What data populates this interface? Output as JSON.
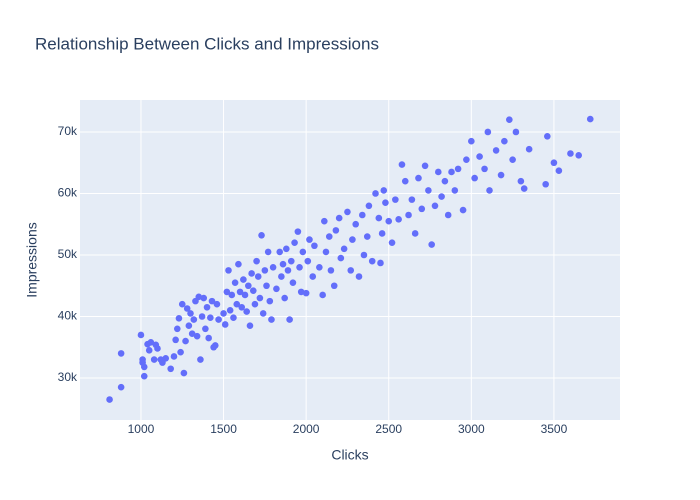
{
  "chart_data": {
    "type": "scatter",
    "title": "Relationship Between Clicks and Impressions",
    "x_label": "Clicks",
    "y_label": "Impressions",
    "color": "#636efa",
    "grid": true,
    "xlim": [
      631,
      3900
    ],
    "ylim": [
      23170,
      75200
    ],
    "xticks": [
      1000,
      1500,
      2000,
      2500,
      3000,
      3500
    ],
    "yticks": [
      {
        "value": 30000,
        "label": "30k"
      },
      {
        "value": 40000,
        "label": "40k"
      },
      {
        "value": 50000,
        "label": "50k"
      },
      {
        "value": 60000,
        "label": "60k"
      },
      {
        "value": 70000,
        "label": "70k"
      }
    ],
    "x": [
      810,
      880,
      880,
      1000,
      1010,
      1010,
      1020,
      1020,
      1040,
      1050,
      1060,
      1080,
      1090,
      1100,
      1120,
      1130,
      1150,
      1180,
      1200,
      1210,
      1220,
      1230,
      1240,
      1250,
      1260,
      1270,
      1280,
      1290,
      1300,
      1310,
      1320,
      1330,
      1340,
      1350,
      1360,
      1370,
      1380,
      1390,
      1400,
      1410,
      1420,
      1430,
      1440,
      1450,
      1460,
      1470,
      1500,
      1510,
      1520,
      1530,
      1540,
      1550,
      1560,
      1570,
      1580,
      1590,
      1600,
      1610,
      1620,
      1630,
      1640,
      1650,
      1660,
      1670,
      1680,
      1690,
      1700,
      1710,
      1720,
      1730,
      1740,
      1750,
      1760,
      1770,
      1780,
      1790,
      1800,
      1820,
      1840,
      1850,
      1860,
      1870,
      1880,
      1890,
      1900,
      1910,
      1920,
      1930,
      1950,
      1960,
      1970,
      1980,
      2000,
      2010,
      2020,
      2040,
      2050,
      2080,
      2100,
      2110,
      2120,
      2140,
      2150,
      2170,
      2180,
      2200,
      2210,
      2230,
      2250,
      2270,
      2280,
      2300,
      2320,
      2340,
      2350,
      2370,
      2380,
      2400,
      2420,
      2440,
      2450,
      2460,
      2470,
      2480,
      2500,
      2520,
      2540,
      2560,
      2580,
      2600,
      2620,
      2640,
      2660,
      2680,
      2700,
      2720,
      2740,
      2760,
      2780,
      2800,
      2820,
      2840,
      2860,
      2880,
      2900,
      2920,
      2950,
      2970,
      3000,
      3020,
      3050,
      3080,
      3100,
      3110,
      3150,
      3180,
      3200,
      3230,
      3250,
      3270,
      3300,
      3320,
      3350,
      3450,
      3460,
      3500,
      3530,
      3600,
      3650,
      3720
    ],
    "values": [
      26500,
      28500,
      34000,
      37000,
      33000,
      32500,
      30300,
      31800,
      35500,
      34500,
      35800,
      33000,
      35400,
      34800,
      33000,
      32500,
      33200,
      31500,
      33500,
      36200,
      38000,
      39700,
      34200,
      42000,
      30800,
      36000,
      41300,
      38500,
      40500,
      37200,
      39500,
      42500,
      36800,
      43200,
      33000,
      40000,
      43000,
      38000,
      41500,
      36500,
      39800,
      42500,
      35000,
      35300,
      42000,
      39500,
      40500,
      38700,
      44000,
      47500,
      41000,
      43500,
      39800,
      45500,
      42000,
      48500,
      44000,
      41500,
      46000,
      43500,
      40800,
      45000,
      38500,
      47000,
      44200,
      42000,
      49000,
      46500,
      43000,
      53200,
      40500,
      47500,
      45000,
      50500,
      42500,
      39500,
      48000,
      44500,
      50500,
      46500,
      48500,
      43000,
      51000,
      47500,
      39500,
      49000,
      45500,
      52000,
      53800,
      48000,
      44000,
      50500,
      43800,
      49000,
      52500,
      46500,
      51500,
      48000,
      43500,
      55500,
      50500,
      53000,
      47500,
      45000,
      54000,
      56000,
      49500,
      51000,
      57000,
      47500,
      52500,
      55000,
      46500,
      56500,
      50000,
      53000,
      58000,
      49000,
      60000,
      56000,
      48700,
      53500,
      60500,
      58500,
      55500,
      52000,
      59000,
      55800,
      64700,
      62000,
      56500,
      59000,
      53500,
      62500,
      57500,
      64500,
      60500,
      51700,
      58000,
      63500,
      59500,
      62000,
      56500,
      63500,
      60500,
      64000,
      57300,
      65500,
      68500,
      62500,
      66000,
      64000,
      70000,
      60500,
      67000,
      63000,
      68500,
      72000,
      65500,
      70000,
      62000,
      60800,
      67200,
      61500,
      69300,
      65000,
      63700,
      66500,
      66200,
      72100
    ]
  }
}
